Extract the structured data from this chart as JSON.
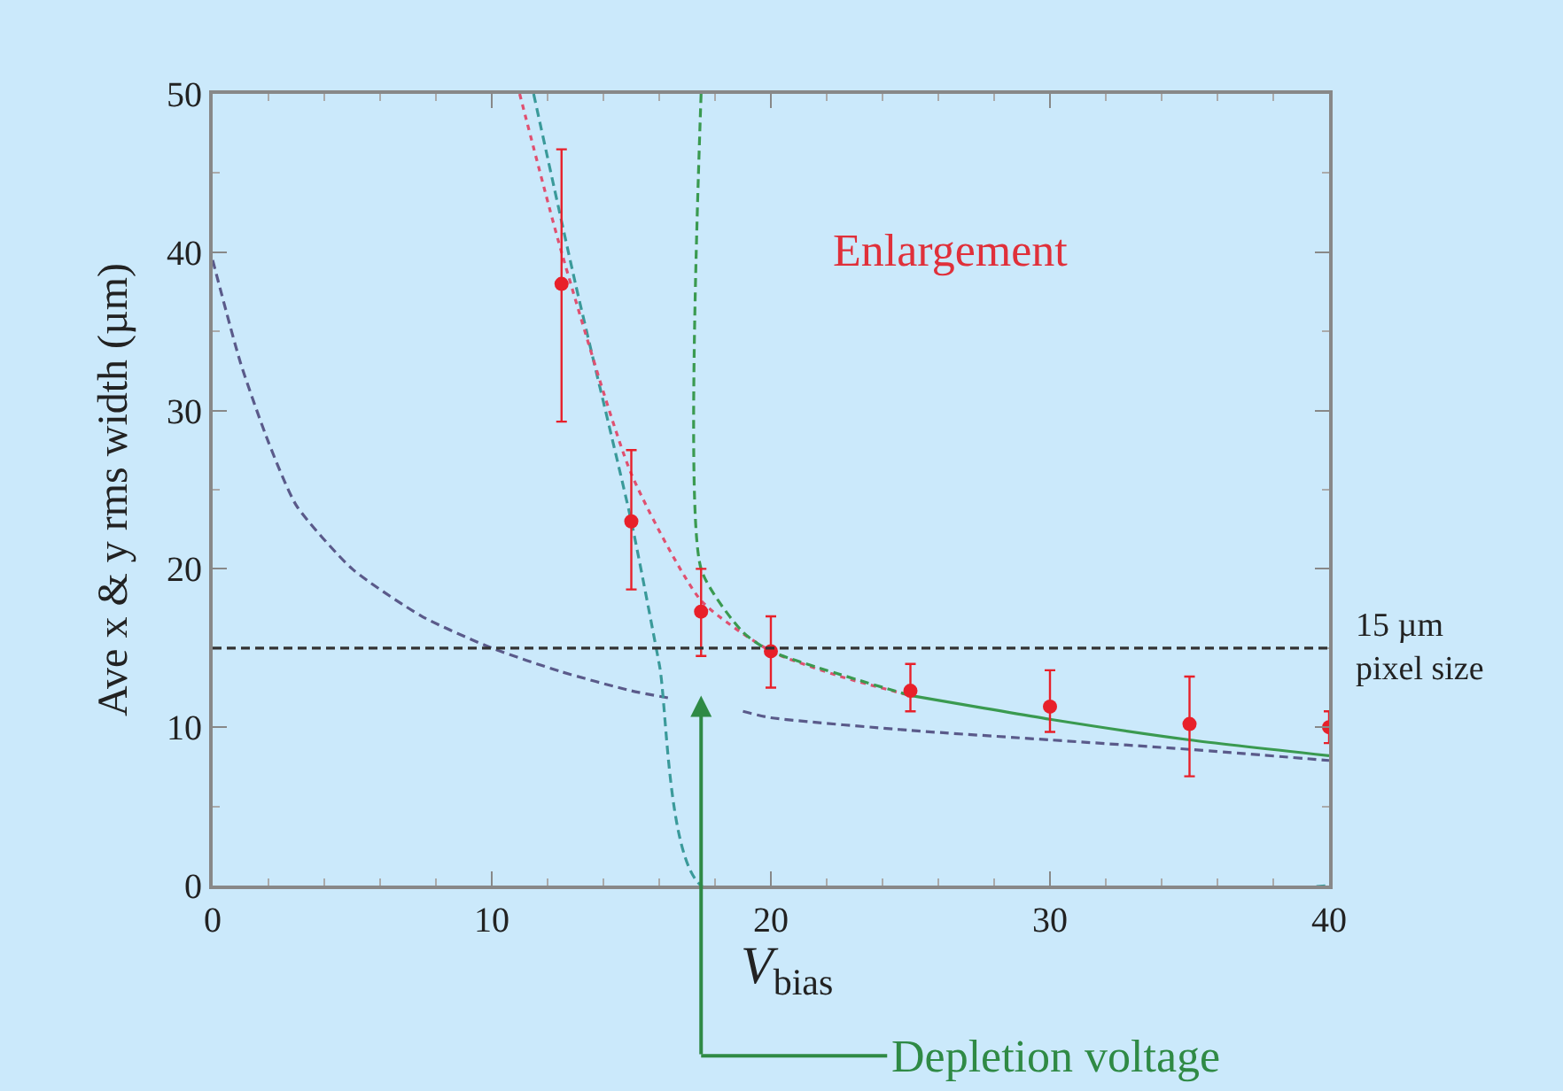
{
  "chart_data": {
    "type": "scatter",
    "ylabel": "Ave x & y rms width (µm)",
    "xlim": [
      0,
      40
    ],
    "ylim": [
      0,
      50
    ],
    "xticks": [
      0,
      10,
      20,
      30,
      40
    ],
    "yticks": [
      0,
      10,
      20,
      30,
      40,
      50
    ],
    "grid": false,
    "series": [
      {
        "type": "line",
        "color": "#5a5a8a",
        "line_style": "dashed",
        "marker": "none",
        "x": [
          0,
          1,
          2,
          3,
          5,
          7.5,
          10,
          12.5,
          15,
          16.5
        ],
        "values": [
          39.5,
          33,
          28,
          24,
          20,
          17,
          15,
          13.5,
          12.3,
          11.8
        ]
      },
      {
        "type": "line",
        "color": "#5a5a8a",
        "line_style": "dashed",
        "marker": "none",
        "x": [
          19,
          20,
          25,
          30,
          35,
          40
        ],
        "values": [
          11,
          10.6,
          9.8,
          9.2,
          8.6,
          7.9
        ]
      },
      {
        "type": "line",
        "color": "#3a9a9a",
        "line_style": "dashed",
        "marker": "none",
        "x": [
          11.5,
          13,
          15,
          16,
          17.5,
          40
        ],
        "values": [
          50,
          38,
          23,
          14,
          0,
          0
        ]
      },
      {
        "type": "line",
        "color": "#e05070",
        "line_style": "dotted",
        "marker": "none",
        "x": [
          11,
          12.5,
          15,
          17.5,
          20,
          22.5,
          25
        ],
        "values": [
          50,
          40,
          26,
          18,
          14.8,
          13.2,
          12
        ]
      },
      {
        "type": "line",
        "color": "#3a9a50",
        "line_style": "dashed",
        "marker": "none",
        "x": [
          17.5,
          17.5,
          19,
          20,
          25
        ],
        "values": [
          50,
          20,
          16,
          14.8,
          12
        ]
      },
      {
        "type": "line",
        "color": "#3a9a50",
        "line_style": "solid",
        "marker": "none",
        "x": [
          25,
          30,
          35,
          40
        ],
        "values": [
          12,
          10.5,
          9.2,
          8.2
        ]
      },
      {
        "color": "#e8202a",
        "marker": "circle",
        "x": [
          12.5,
          15,
          17.5,
          20,
          25,
          30,
          35,
          40
        ],
        "values": [
          38,
          23,
          17.3,
          14.8,
          12.3,
          11.3,
          10.2,
          10
        ],
        "errors": [
          [
            29.3,
            46.5
          ],
          [
            18.7,
            27.5
          ],
          [
            14.5,
            20
          ],
          [
            12.5,
            17
          ],
          [
            11,
            14
          ],
          [
            9.7,
            13.6
          ],
          [
            6.9,
            13.2
          ],
          [
            9,
            11
          ]
        ]
      }
    ],
    "ref_lines": [
      {
        "axis": "y",
        "value": 15,
        "label": "15 µm pixel size",
        "color": "#333333",
        "line_style": "dashed"
      }
    ],
    "annotations": [
      "Enlargement",
      "V$_{bias}$",
      "Depletion voltage"
    ]
  }
}
